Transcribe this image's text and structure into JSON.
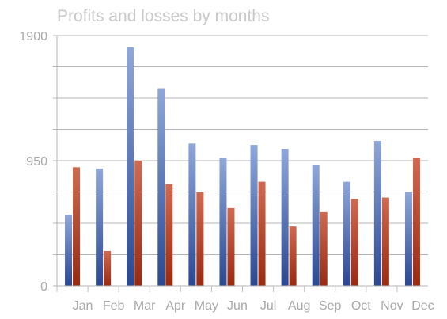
{
  "chart_data": {
    "type": "bar",
    "title": "Profits and losses by months",
    "categories": [
      "Jan",
      "Feb",
      "Mar",
      "Apr",
      "May",
      "Jun",
      "Jul",
      "Aug",
      "Sep",
      "Oct",
      "Nov",
      "Dec"
    ],
    "series": [
      {
        "values": [
          540,
          890,
          1810,
          1500,
          1080,
          970,
          1070,
          1040,
          920,
          790,
          1100,
          710
        ],
        "color": "#4a6fbe"
      },
      {
        "values": [
          900,
          265,
          950,
          770,
          710,
          590,
          790,
          450,
          560,
          660,
          670,
          970
        ],
        "color": "#b8462b"
      }
    ],
    "ylim": [
      0,
      1900
    ],
    "yticks": [
      "0",
      "950",
      "1900"
    ],
    "grid": true,
    "legend": "none"
  }
}
